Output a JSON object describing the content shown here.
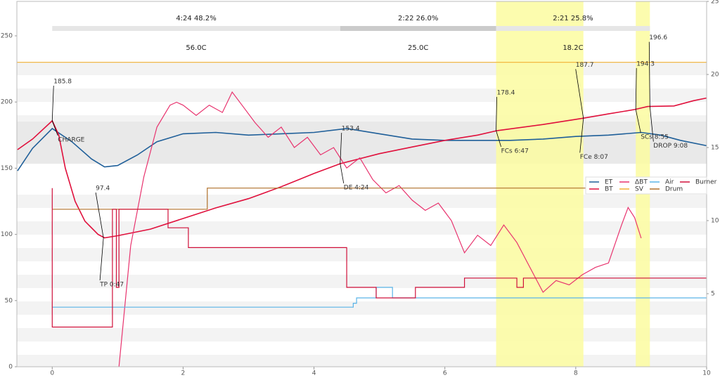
{
  "chart_data": {
    "type": "line",
    "xlim": [
      -0.54,
      10
    ],
    "xticks": [
      0,
      2,
      4,
      6,
      8,
      10
    ],
    "ylim": [
      0,
      276
    ],
    "yticks": [
      0,
      50,
      100,
      150,
      200,
      250
    ],
    "y2lim": [
      0,
      25
    ],
    "y2ticks": [
      5,
      10,
      15,
      20,
      25
    ],
    "legend": "center right",
    "series": [
      {
        "name": "ET",
        "color": "#1f5f99",
        "x": [
          -0.53,
          -0.3,
          0,
          0.3,
          0.6,
          0.8,
          1.0,
          1.3,
          1.6,
          2.0,
          2.5,
          3,
          3.5,
          4,
          4.5,
          5,
          5.5,
          6,
          6.5,
          7,
          7.5,
          8,
          8.5,
          9,
          9.3,
          9.6,
          10
        ],
        "values": [
          148,
          165,
          180,
          170,
          157,
          151,
          152,
          160,
          170,
          176,
          177,
          175,
          176,
          177,
          180,
          176,
          172,
          171,
          171,
          171,
          172,
          174,
          175,
          177,
          175,
          171,
          167
        ]
      },
      {
        "name": "BT",
        "color": "#e0103c",
        "x": [
          -0.53,
          -0.3,
          0,
          0.1,
          0.2,
          0.35,
          0.5,
          0.7,
          0.8,
          1.0,
          1.5,
          2.0,
          2.5,
          3.0,
          3.5,
          4.0,
          4.4,
          5.0,
          5.5,
          6.0,
          6.5,
          6.8,
          7.5,
          8.1,
          8.5,
          8.9,
          9.1,
          9.5,
          9.8,
          10
        ],
        "values": [
          164,
          172,
          185.8,
          175,
          150,
          125,
          110,
          100,
          97.4,
          99,
          104,
          112,
          120,
          127,
          136,
          146,
          153.4,
          161,
          166,
          171,
          175,
          178.4,
          183,
          187.7,
          191,
          194.3,
          196.6,
          197,
          201,
          203
        ]
      },
      {
        "name": "ΔBT",
        "color": "#e8336e",
        "axis": "y2",
        "x": [
          1.02,
          1.2,
          1.4,
          1.6,
          1.8,
          1.9,
          2.0,
          2.2,
          2.4,
          2.6,
          2.75,
          2.9,
          3.1,
          3.3,
          3.5,
          3.7,
          3.9,
          4.1,
          4.3,
          4.5,
          4.7,
          4.9,
          5.1,
          5.3,
          5.5,
          5.7,
          5.9,
          6.1,
          6.3,
          6.5,
          6.7,
          6.9,
          7.1,
          7.3,
          7.5,
          7.7,
          7.9,
          8.1,
          8.3,
          8.5,
          8.7,
          8.8,
          8.9,
          9.0
        ],
        "values": [
          0,
          8.3,
          13,
          16.4,
          17.9,
          18.1,
          17.9,
          17.2,
          17.9,
          17.4,
          18.8,
          17.9,
          16.7,
          15.7,
          16.4,
          15.0,
          15.7,
          14.5,
          15.0,
          13.6,
          14.3,
          12.8,
          11.9,
          12.4,
          11.4,
          10.7,
          11.2,
          10.0,
          7.8,
          9.0,
          8.3,
          9.7,
          8.5,
          6.8,
          5.1,
          5.9,
          5.6,
          6.3,
          6.8,
          7.1,
          9.7,
          10.9,
          10.2,
          8.8
        ]
      },
      {
        "name": "SV",
        "color": "#f2b134",
        "x": [
          -0.54,
          10
        ],
        "values": [
          230,
          230
        ]
      },
      {
        "name": "Air",
        "color": "#5ab4e8",
        "x": [
          0,
          4.6,
          4.6,
          4.65,
          4.65,
          4.95,
          4.95,
          5.2,
          5.2,
          10
        ],
        "values": [
          45,
          45,
          48,
          48,
          52,
          52,
          60,
          60,
          52,
          52
        ]
      },
      {
        "name": "Drum",
        "color": "#b0702a",
        "x": [
          0,
          2.37,
          2.37,
          10
        ],
        "values": [
          119,
          119,
          135,
          135
        ]
      },
      {
        "name": "Burner",
        "color": "#d0103a",
        "x": [
          0,
          0,
          0.92,
          0.92,
          0.98,
          0.98,
          1.02,
          1.02,
          1.77,
          1.77,
          2.08,
          2.08,
          4.5,
          4.5,
          4.95,
          4.95,
          5.55,
          5.55,
          6.3,
          6.3,
          7.1,
          7.1,
          7.2,
          7.2,
          10
        ],
        "values": [
          135,
          30,
          30,
          119,
          119,
          60,
          60,
          119,
          119,
          105,
          105,
          90,
          90,
          60,
          60,
          52,
          52,
          60,
          60,
          67,
          67,
          60,
          60,
          67,
          67
        ]
      }
    ],
    "events": [
      {
        "event": "CHARGE",
        "time": 0,
        "temp": 185.8
      },
      {
        "event": "TP 0:47",
        "time": 0.783,
        "temp": 97.4
      },
      {
        "event": "DE 4:24",
        "time": 4.4,
        "temp": 153.4
      },
      {
        "event": "FCs 6:47",
        "time": 6.783,
        "temp": 178.4
      },
      {
        "event": "FCe 8:07",
        "time": 8.117,
        "temp": 187.7
      },
      {
        "event": "SCs 8:55",
        "time": 8.917,
        "temp": 194.3
      },
      {
        "event": "DROP 9:08",
        "time": 9.133,
        "temp": 196.6
      }
    ],
    "phases": [
      {
        "label": "4:24  48.2%",
        "temp": "56.0C"
      },
      {
        "label": "2:22  26.0%",
        "temp": "25.0C"
      },
      {
        "label": "2:21  25.8%",
        "temp": "18.2C"
      }
    ]
  }
}
